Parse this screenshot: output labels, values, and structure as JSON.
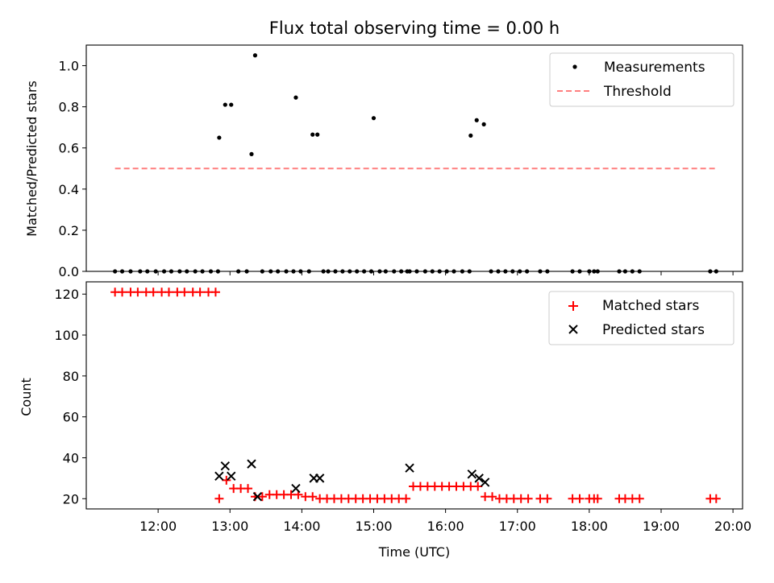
{
  "chart_data": [
    {
      "type": "scatter",
      "title": "Flux total observing time = 0.00 h",
      "xlabel": "",
      "ylabel": "Matched/Predicted stars",
      "xlim": [
        "11:00",
        "20:08"
      ],
      "ylim": [
        0,
        1.1
      ],
      "yticks": [
        "0.0",
        "0.2",
        "0.4",
        "0.6",
        "0.8",
        "1.0"
      ],
      "legend_position": "top-right",
      "series": [
        {
          "name": "Measurements",
          "kind": "points",
          "color": "#000000",
          "x": [
            "11:24",
            "11:30",
            "11:37",
            "11:45",
            "11:51",
            "11:58",
            "12:05",
            "12:11",
            "12:18",
            "12:24",
            "12:31",
            "12:37",
            "12:44",
            "12:50",
            "12:51",
            "12:56",
            "13:01",
            "13:07",
            "13:14",
            "13:18",
            "13:21",
            "13:27",
            "13:34",
            "13:40",
            "13:47",
            "13:53",
            "13:55",
            "13:59",
            "14:06",
            "14:09",
            "14:13",
            "14:18",
            "14:22",
            "14:28",
            "14:34",
            "14:40",
            "14:46",
            "14:52",
            "14:58",
            "15:00",
            "15:05",
            "15:10",
            "15:17",
            "15:23",
            "15:28",
            "15:30",
            "15:36",
            "15:43",
            "15:49",
            "15:55",
            "16:01",
            "16:07",
            "16:14",
            "16:20",
            "16:21",
            "16:26",
            "16:32",
            "16:38",
            "16:44",
            "16:50",
            "16:56",
            "17:02",
            "17:08",
            "17:19",
            "17:25",
            "17:46",
            "17:52",
            "18:00",
            "18:04",
            "18:07",
            "18:25",
            "18:30",
            "18:36",
            "18:42",
            "19:41",
            "19:46"
          ],
          "y": [
            0,
            0,
            0,
            0,
            0,
            0,
            0,
            0,
            0,
            0,
            0,
            0,
            0,
            0,
            0.65,
            0.81,
            0.81,
            0,
            0,
            0.57,
            1.05,
            0,
            0,
            0,
            0,
            0,
            0.845,
            0,
            0,
            0.665,
            0.665,
            0,
            0,
            0,
            0,
            0,
            0,
            0,
            0,
            0.745,
            0,
            0,
            0,
            0,
            0,
            0,
            0,
            0,
            0,
            0,
            0,
            0,
            0,
            0,
            0.66,
            0.735,
            0.715,
            0,
            0,
            0,
            0,
            0,
            0,
            0,
            0,
            0,
            0,
            0,
            0,
            0,
            0,
            0,
            0,
            0,
            0,
            0
          ]
        },
        {
          "name": "Threshold",
          "kind": "dashed-line",
          "color": "#ff7f7f",
          "x": [
            "11:24",
            "19:46"
          ],
          "y": [
            0.5,
            0.5
          ]
        }
      ]
    },
    {
      "type": "scatter",
      "title": "",
      "xlabel": "Time (UTC)",
      "ylabel": "Count",
      "xlim": [
        "11:00",
        "20:08"
      ],
      "ylim": [
        15,
        126
      ],
      "xticks": [
        "12:00",
        "13:00",
        "14:00",
        "15:00",
        "16:00",
        "17:00",
        "18:00",
        "19:00",
        "20:00"
      ],
      "yticks": [
        "20",
        "40",
        "60",
        "80",
        "100",
        "120"
      ],
      "legend_position": "top-right",
      "series": [
        {
          "name": "Matched stars",
          "marker": "+",
          "color": "#ff0000",
          "x": [
            "11:24",
            "11:30",
            "11:37",
            "11:43",
            "11:50",
            "11:56",
            "12:03",
            "12:09",
            "12:16",
            "12:22",
            "12:29",
            "12:35",
            "12:42",
            "12:48",
            "12:51",
            "12:57",
            "13:03",
            "13:09",
            "13:15",
            "13:21",
            "13:27",
            "13:33",
            "13:39",
            "13:45",
            "13:51",
            "13:57",
            "14:03",
            "14:09",
            "14:15",
            "14:21",
            "14:27",
            "14:33",
            "14:39",
            "14:45",
            "14:51",
            "14:57",
            "15:03",
            "15:09",
            "15:15",
            "15:21",
            "15:27",
            "15:33",
            "15:39",
            "15:45",
            "15:51",
            "15:57",
            "16:03",
            "16:09",
            "16:15",
            "16:21",
            "16:27",
            "16:33",
            "16:39",
            "16:45",
            "16:51",
            "16:57",
            "17:03",
            "17:09",
            "17:19",
            "17:25",
            "17:46",
            "17:52",
            "18:00",
            "18:04",
            "18:07",
            "18:25",
            "18:30",
            "18:36",
            "18:42",
            "19:41",
            "19:46"
          ],
          "y": [
            121,
            121,
            121,
            121,
            121,
            121,
            121,
            121,
            121,
            121,
            121,
            121,
            121,
            121,
            20,
            29,
            25,
            25,
            25,
            21,
            21,
            22,
            22,
            22,
            22,
            22,
            21,
            21,
            20,
            20,
            20,
            20,
            20,
            20,
            20,
            20,
            20,
            20,
            20,
            20,
            20,
            26,
            26,
            26,
            26,
            26,
            26,
            26,
            26,
            26,
            26,
            21,
            21,
            20,
            20,
            20,
            20,
            20,
            20,
            20,
            20,
            20,
            20,
            20,
            20,
            20,
            20,
            20,
            20,
            20,
            20
          ]
        },
        {
          "name": "Predicted stars",
          "marker": "x",
          "color": "#000000",
          "x": [
            "12:51",
            "12:56",
            "13:01",
            "13:18",
            "13:23",
            "13:55",
            "14:10",
            "14:15",
            "15:30",
            "16:22",
            "16:28",
            "16:33"
          ],
          "y": [
            31,
            36,
            31,
            37,
            21,
            25,
            30,
            30,
            35,
            32,
            30,
            28
          ]
        }
      ]
    }
  ]
}
